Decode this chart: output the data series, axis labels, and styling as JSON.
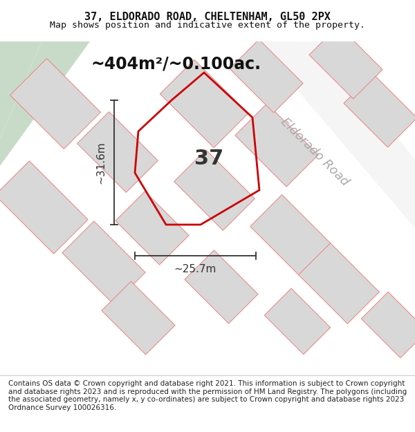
{
  "title_line1": "37, ELDORADO ROAD, CHELTENHAM, GL50 2PX",
  "title_line2": "Map shows position and indicative extent of the property.",
  "area_text": "~404m²/~0.100ac.",
  "label_37": "37",
  "road_name": "Eldorado Road",
  "dim_height": "~31.6m",
  "dim_width": "~25.7m",
  "footer_text": "Contains OS data © Crown copyright and database right 2021. This information is subject to Crown copyright and database rights 2023 and is reproduced with the permission of HM Land Registry. The polygons (including the associated geometry, namely x, y co-ordinates) are subject to Crown copyright and database rights 2023 Ordnance Survey 100026316.",
  "bg_color": "#ffffff",
  "map_bg": "#f5f5f5",
  "building_color": "#d8d8d8",
  "road_fill_color": "#ffffff",
  "pink_line_color": "#f08080",
  "green_strip_color": "#c8dbc8",
  "property_color": "#cc0000",
  "dim_color": "#333333",
  "title_fontsize": 11,
  "subtitle_fontsize": 9.5,
  "area_fontsize": 17,
  "label_fontsize": 22,
  "road_fontsize": 13,
  "dim_fontsize": 11,
  "footer_fontsize": 7.5
}
